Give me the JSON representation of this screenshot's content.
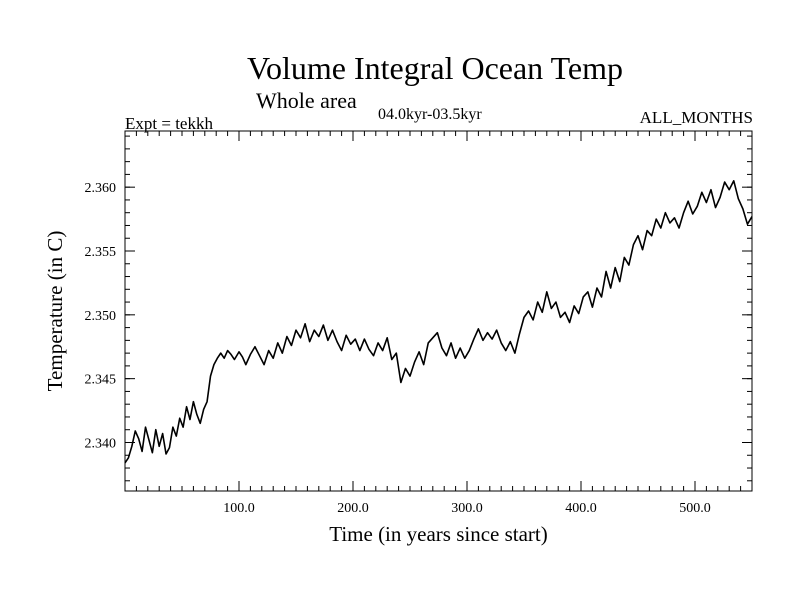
{
  "chart_data": {
    "type": "line",
    "title": "Volume Integral Ocean Temp",
    "subtitle": "Whole area",
    "left_annotation": "Expt = tekkh",
    "center_annotation": "04.0kyr-03.5kyr",
    "right_annotation": "ALL_MONTHS",
    "xlabel": "Time (in years since start)",
    "ylabel": "Temperature (in C)",
    "xlim": [
      0,
      550
    ],
    "ylim": [
      2.3362,
      2.3644
    ],
    "x_ticks": [
      {
        "value": 100,
        "label": "100.0"
      },
      {
        "value": 200,
        "label": "200.0"
      },
      {
        "value": 300,
        "label": "300.0"
      },
      {
        "value": 400,
        "label": "400.0"
      },
      {
        "value": 500,
        "label": "500.0"
      }
    ],
    "y_ticks": [
      {
        "value": 2.34,
        "label": "2.340"
      },
      {
        "value": 2.345,
        "label": "2.345"
      },
      {
        "value": 2.35,
        "label": "2.350"
      },
      {
        "value": 2.355,
        "label": "2.355"
      },
      {
        "value": 2.36,
        "label": "2.360"
      }
    ],
    "x_minor_step": 10,
    "y_minor_step": 0.001,
    "grid": false,
    "line_color": "#000000",
    "series": [
      {
        "name": "Volume Integral Ocean Temp",
        "x": [
          0,
          3,
          6,
          9,
          12,
          15,
          18,
          21,
          24,
          27,
          30,
          33,
          36,
          39,
          42,
          45,
          48,
          51,
          54,
          57,
          60,
          63,
          66,
          69,
          72,
          75,
          78,
          81,
          84,
          87,
          90,
          93,
          96,
          100,
          103,
          106,
          110,
          114,
          118,
          122,
          126,
          130,
          134,
          138,
          142,
          146,
          150,
          154,
          158,
          162,
          166,
          170,
          174,
          178,
          182,
          186,
          190,
          194,
          198,
          202,
          206,
          210,
          214,
          218,
          222,
          226,
          230,
          234,
          238,
          242,
          246,
          250,
          254,
          258,
          262,
          266,
          270,
          274,
          278,
          282,
          286,
          290,
          294,
          298,
          302,
          306,
          310,
          314,
          318,
          322,
          326,
          330,
          334,
          338,
          342,
          346,
          350,
          354,
          358,
          362,
          366,
          370,
          374,
          378,
          382,
          386,
          390,
          394,
          398,
          402,
          406,
          410,
          414,
          418,
          422,
          426,
          430,
          434,
          438,
          442,
          446,
          450,
          454,
          458,
          462,
          466,
          470,
          474,
          478,
          482,
          486,
          490,
          494,
          498,
          502,
          506,
          510,
          514,
          518,
          522,
          526,
          530,
          534,
          538,
          542,
          546,
          550
        ],
        "values": [
          2.3384,
          2.3388,
          2.3397,
          2.3409,
          2.3403,
          2.3393,
          2.3412,
          2.3402,
          2.3392,
          2.341,
          2.3397,
          2.3407,
          2.3391,
          2.3396,
          2.3412,
          2.3405,
          2.3419,
          2.3412,
          2.3428,
          2.3418,
          2.3432,
          2.3422,
          2.3415,
          2.3426,
          2.3432,
          2.3452,
          2.3461,
          2.3466,
          2.347,
          2.3466,
          2.3472,
          2.3469,
          2.3465,
          2.3471,
          2.3467,
          2.3461,
          2.3469,
          2.3475,
          2.3468,
          2.3461,
          2.3472,
          2.3466,
          2.3478,
          2.347,
          2.3483,
          2.3476,
          2.3488,
          2.3482,
          2.3493,
          2.3479,
          2.3488,
          2.3483,
          2.3492,
          2.348,
          2.3488,
          2.3479,
          2.3472,
          2.3484,
          2.3477,
          2.3481,
          2.3472,
          2.3481,
          2.3473,
          2.3468,
          2.3478,
          2.3472,
          2.3482,
          2.3465,
          2.347,
          2.3447,
          2.3458,
          2.3452,
          2.3463,
          2.3471,
          2.3461,
          2.3478,
          2.3482,
          2.3486,
          2.3474,
          2.3468,
          2.3478,
          2.3466,
          2.3474,
          2.3466,
          2.3472,
          2.3481,
          2.3489,
          2.348,
          2.3486,
          2.3481,
          2.3488,
          2.3478,
          2.3472,
          2.3479,
          2.347,
          2.3485,
          2.3498,
          2.3503,
          2.3496,
          2.351,
          2.3502,
          2.3518,
          2.3505,
          2.351,
          2.3498,
          2.3502,
          2.3494,
          2.3507,
          2.3501,
          2.3514,
          2.3518,
          2.3506,
          2.3521,
          2.3514,
          2.3534,
          2.3521,
          2.3537,
          2.3526,
          2.3545,
          2.3539,
          2.3555,
          2.3562,
          2.3551,
          2.3566,
          2.3562,
          2.3575,
          2.3568,
          2.358,
          2.3572,
          2.3576,
          2.3568,
          2.358,
          2.3589,
          2.3579,
          2.3585,
          2.3596,
          2.3588,
          2.3598,
          2.3584,
          2.3592,
          2.3604,
          2.3598,
          2.3605,
          2.3591,
          2.3583,
          2.3571,
          2.3577
        ]
      }
    ]
  }
}
